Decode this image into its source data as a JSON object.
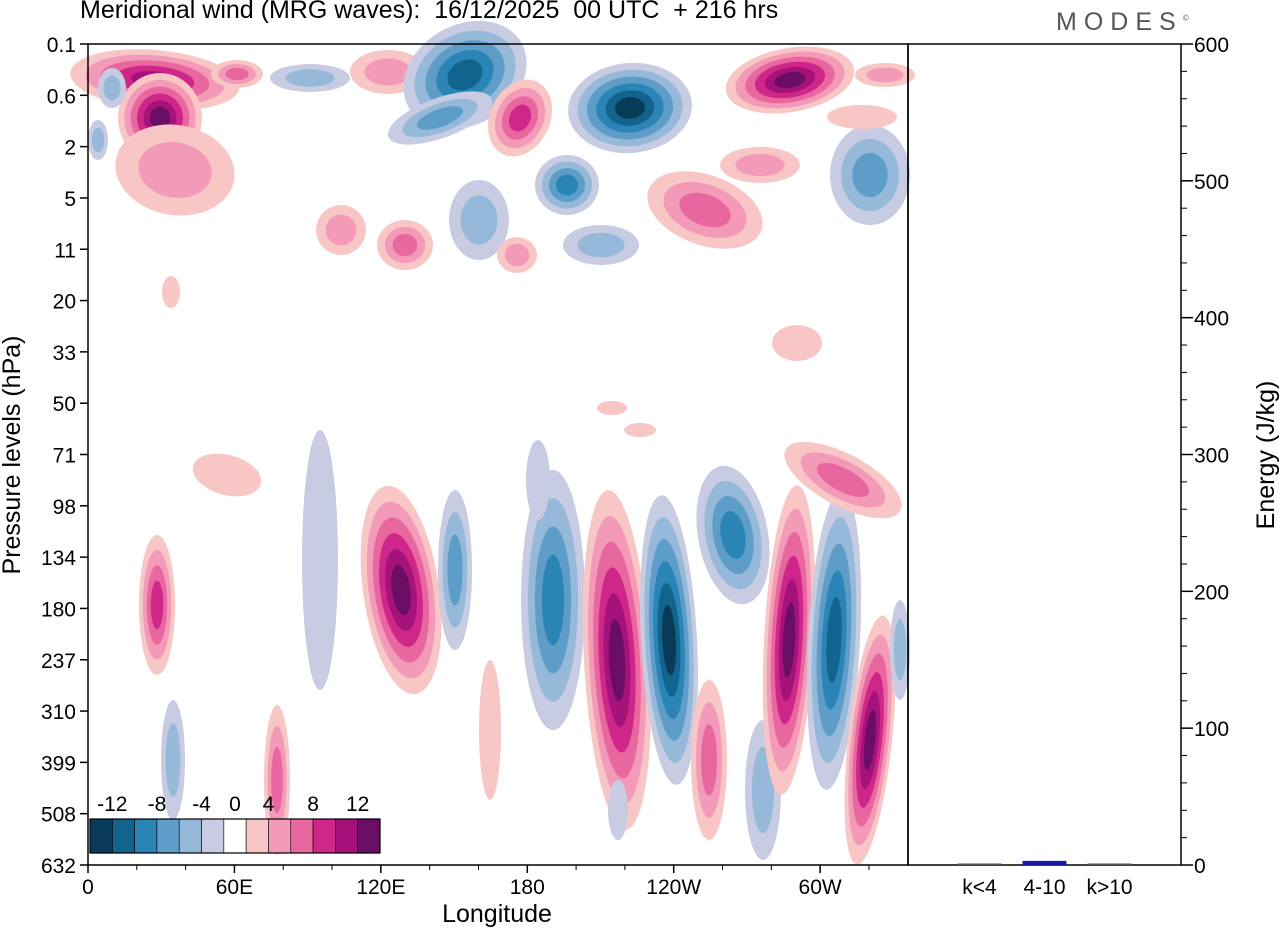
{
  "header": {
    "title": "Meridional wind (MRG waves):  16/12/2025  00 UTC  + 216 hrs",
    "brand": "MODES",
    "brand_mark": "©"
  },
  "chart_data": [
    {
      "type": "heatmap",
      "name": "meridional-wind-section",
      "xlabel": "Longitude",
      "ylabel": "Pressure levels (hPa)",
      "x_ticks": [
        "0",
        "60E",
        "120E",
        "180",
        "120W",
        "60W"
      ],
      "x_tick_degrees": [
        0,
        60,
        120,
        180,
        240,
        300
      ],
      "x_range_degrees": [
        0,
        336
      ],
      "y_ticks": [
        "0.1",
        "0.6",
        "2",
        "5",
        "11",
        "20",
        "33",
        "50",
        "71",
        "98",
        "134",
        "180",
        "237",
        "310",
        "399",
        "508",
        "632"
      ],
      "colorbar": {
        "labels": [
          "-12",
          "-8",
          "-4",
          "0",
          "4",
          "8",
          "12"
        ],
        "levels": [
          -14,
          -12,
          -10,
          -8,
          -6,
          -4,
          -2,
          2,
          4,
          6,
          8,
          10,
          12,
          14
        ],
        "colors": [
          "#073b57",
          "#12648f",
          "#2a84b5",
          "#5e9dc8",
          "#96b9d9",
          "#c7cce2",
          "#ffffff",
          "#f9c6c6",
          "#f39ab8",
          "#e8679f",
          "#cf2789",
          "#a5137a",
          "#6a0d65"
        ]
      },
      "features": [
        {
          "label": "upper-warm-west",
          "level_hpa": 1.0,
          "lon": 30,
          "value": 14
        },
        {
          "label": "upper-cold-central",
          "level_hpa": 0.8,
          "lon": 215,
          "value": -14
        },
        {
          "label": "upper-warm-east",
          "level_hpa": 0.5,
          "lon": 290,
          "value": 14
        },
        {
          "label": "lower-warm-120E",
          "level_hpa": 150,
          "lon": 130,
          "value": 12
        },
        {
          "label": "lower-cold-160W",
          "level_hpa": 230,
          "lon": 240,
          "value": -14
        },
        {
          "label": "lower-warm-60W",
          "level_hpa": 170,
          "lon": 290,
          "value": 14
        },
        {
          "label": "lower-cold-40W",
          "level_hpa": 200,
          "lon": 310,
          "value": -12
        },
        {
          "label": "lower-warm-20W",
          "level_hpa": 330,
          "lon": 325,
          "value": 13
        }
      ]
    },
    {
      "type": "bar",
      "name": "energy-by-wavenumber",
      "ylabel": "Energy (J/kg)",
      "categories": [
        "k<4",
        "4-10",
        "k>10"
      ],
      "values": [
        0.5,
        3,
        0.5
      ],
      "y_ticks": [
        "0",
        "100",
        "200",
        "300",
        "400",
        "500",
        "600"
      ],
      "ylim": [
        0,
        600
      ],
      "bar_color": "#1a1aa8"
    }
  ]
}
